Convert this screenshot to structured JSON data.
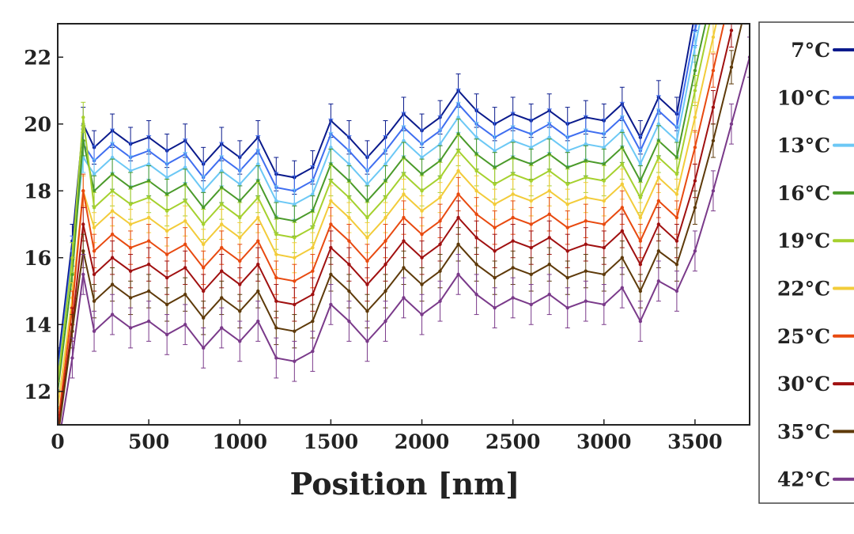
{
  "chart_data": {
    "type": "line",
    "title": "",
    "xlabel": "Position [nm]",
    "ylabel": "",
    "xlim": [
      0,
      3800
    ],
    "ylim": [
      11,
      23
    ],
    "xticks": [
      0,
      500,
      1000,
      1500,
      2000,
      2500,
      3000,
      3500
    ],
    "yticks": [
      12,
      14,
      16,
      18,
      20,
      22
    ],
    "grid": false,
    "legend_position": "right-outside",
    "error_bars": true,
    "x": [
      0,
      80,
      140,
      200,
      300,
      400,
      500,
      600,
      700,
      800,
      900,
      1000,
      1100,
      1200,
      1300,
      1400,
      1500,
      1600,
      1700,
      1800,
      1900,
      2000,
      2100,
      2200,
      2300,
      2400,
      2500,
      2600,
      2700,
      2800,
      2900,
      3000,
      3100,
      3200,
      3300,
      3400,
      3500,
      3600,
      3700,
      3800
    ],
    "series": [
      {
        "name": "7°C",
        "color": "#0a1a8c",
        "error": 0.5,
        "values": [
          12.8,
          16.5,
          20.0,
          19.3,
          19.8,
          19.4,
          19.6,
          19.2,
          19.5,
          18.8,
          19.4,
          19.0,
          19.6,
          18.5,
          18.4,
          18.7,
          20.1,
          19.6,
          19.0,
          19.6,
          20.3,
          19.8,
          20.2,
          21.0,
          20.4,
          20.0,
          20.3,
          20.1,
          20.4,
          20.0,
          20.2,
          20.1,
          20.6,
          19.6,
          20.8,
          20.3,
          23.3,
          null,
          null,
          null
        ]
      },
      {
        "name": "10°C",
        "color": "#3f6ef0",
        "error": 0.45,
        "values": [
          12.5,
          16.2,
          19.4,
          18.9,
          19.4,
          19.0,
          19.2,
          18.8,
          19.1,
          18.4,
          19.0,
          18.6,
          19.2,
          18.1,
          18.0,
          18.3,
          19.7,
          19.2,
          18.6,
          19.2,
          19.9,
          19.4,
          19.8,
          20.6,
          20.0,
          19.6,
          19.9,
          19.7,
          20.0,
          19.6,
          19.8,
          19.7,
          20.2,
          19.2,
          20.4,
          19.9,
          22.8,
          25.0,
          null,
          null
        ]
      },
      {
        "name": "13°C",
        "color": "#6cc8f5",
        "error": 0.45,
        "values": [
          12.3,
          16.0,
          19.0,
          18.5,
          19.0,
          18.6,
          18.8,
          18.4,
          18.7,
          18.0,
          18.6,
          18.2,
          18.8,
          17.7,
          17.6,
          17.9,
          19.3,
          18.8,
          18.2,
          18.8,
          19.5,
          19.0,
          19.4,
          20.2,
          19.6,
          19.2,
          19.5,
          19.3,
          19.6,
          19.2,
          19.4,
          19.3,
          19.8,
          18.8,
          20.0,
          19.5,
          22.3,
          25.0,
          null,
          null
        ]
      },
      {
        "name": "16°C",
        "color": "#4a9a2a",
        "error": 0.45,
        "values": [
          12.0,
          15.5,
          19.5,
          18.0,
          18.5,
          18.1,
          18.3,
          17.9,
          18.2,
          17.5,
          18.1,
          17.7,
          18.3,
          17.2,
          17.1,
          17.4,
          18.8,
          18.3,
          17.7,
          18.3,
          19.0,
          18.5,
          18.9,
          19.7,
          19.1,
          18.7,
          19.0,
          18.8,
          19.1,
          18.7,
          18.9,
          18.8,
          19.3,
          18.3,
          19.5,
          19.0,
          21.6,
          24.0,
          null,
          null
        ]
      },
      {
        "name": "19°C",
        "color": "#a6d02e",
        "error": 0.45,
        "values": [
          12.3,
          16.0,
          20.2,
          17.5,
          18.0,
          17.6,
          17.8,
          17.4,
          17.7,
          17.0,
          17.6,
          17.2,
          17.8,
          16.7,
          16.6,
          16.9,
          18.3,
          17.8,
          17.2,
          17.8,
          18.5,
          18.0,
          18.4,
          19.2,
          18.6,
          18.2,
          18.5,
          18.3,
          18.6,
          18.2,
          18.4,
          18.3,
          18.8,
          17.8,
          19.0,
          18.5,
          21.0,
          23.5,
          null,
          null
        ]
      },
      {
        "name": "22°C",
        "color": "#f2cc3a",
        "error": 0.45,
        "values": [
          11.5,
          14.8,
          18.0,
          16.9,
          17.4,
          17.0,
          17.2,
          16.8,
          17.1,
          16.4,
          17.0,
          16.6,
          17.2,
          16.1,
          16.0,
          16.3,
          17.7,
          17.2,
          16.6,
          17.2,
          17.9,
          17.4,
          17.8,
          18.6,
          18.0,
          17.6,
          17.9,
          17.7,
          18.0,
          17.6,
          17.8,
          17.7,
          18.2,
          17.2,
          18.4,
          17.9,
          20.2,
          22.6,
          25.0,
          null
        ]
      },
      {
        "name": "25°C",
        "color": "#e84a10",
        "error": 0.5,
        "values": [
          11.0,
          14.5,
          18.0,
          16.2,
          16.7,
          16.3,
          16.5,
          16.1,
          16.4,
          15.7,
          16.3,
          15.9,
          16.5,
          15.4,
          15.3,
          15.6,
          17.0,
          16.5,
          15.9,
          16.5,
          17.2,
          16.7,
          17.1,
          17.9,
          17.3,
          16.9,
          17.2,
          17.0,
          17.3,
          16.9,
          17.1,
          17.0,
          17.5,
          16.5,
          17.7,
          17.2,
          19.3,
          21.6,
          24.0,
          null
        ]
      },
      {
        "name": "30°C",
        "color": "#a01010",
        "error": 0.5,
        "values": [
          10.8,
          14.0,
          17.0,
          15.5,
          16.0,
          15.6,
          15.8,
          15.4,
          15.7,
          15.0,
          15.6,
          15.2,
          15.8,
          14.7,
          14.6,
          14.9,
          16.3,
          15.8,
          15.2,
          15.8,
          16.5,
          16.0,
          16.4,
          17.2,
          16.6,
          16.2,
          16.5,
          16.3,
          16.6,
          16.2,
          16.4,
          16.3,
          16.8,
          15.8,
          17.0,
          16.5,
          18.3,
          20.5,
          22.8,
          null
        ]
      },
      {
        "name": "35°C",
        "color": "#5e3a0a",
        "error": 0.5,
        "values": [
          10.6,
          13.8,
          16.2,
          14.7,
          15.2,
          14.8,
          15.0,
          14.6,
          14.9,
          14.2,
          14.8,
          14.4,
          15.0,
          13.9,
          13.8,
          14.1,
          15.5,
          15.0,
          14.4,
          15.0,
          15.7,
          15.2,
          15.6,
          16.4,
          15.8,
          15.4,
          15.7,
          15.5,
          15.8,
          15.4,
          15.6,
          15.5,
          16.0,
          15.0,
          16.2,
          15.8,
          17.5,
          19.5,
          21.7,
          24.0
        ]
      },
      {
        "name": "42°C",
        "color": "#7a3a8a",
        "error": 0.6,
        "values": [
          10.3,
          13.0,
          15.5,
          13.8,
          14.3,
          13.9,
          14.1,
          13.7,
          14.0,
          13.3,
          13.9,
          13.5,
          14.1,
          13.0,
          12.9,
          13.2,
          14.6,
          14.1,
          13.5,
          14.1,
          14.8,
          14.3,
          14.7,
          15.5,
          14.9,
          14.5,
          14.8,
          14.6,
          14.9,
          14.5,
          14.7,
          14.6,
          15.1,
          14.1,
          15.3,
          15.0,
          16.2,
          18.0,
          20.0,
          22.0
        ]
      }
    ]
  }
}
